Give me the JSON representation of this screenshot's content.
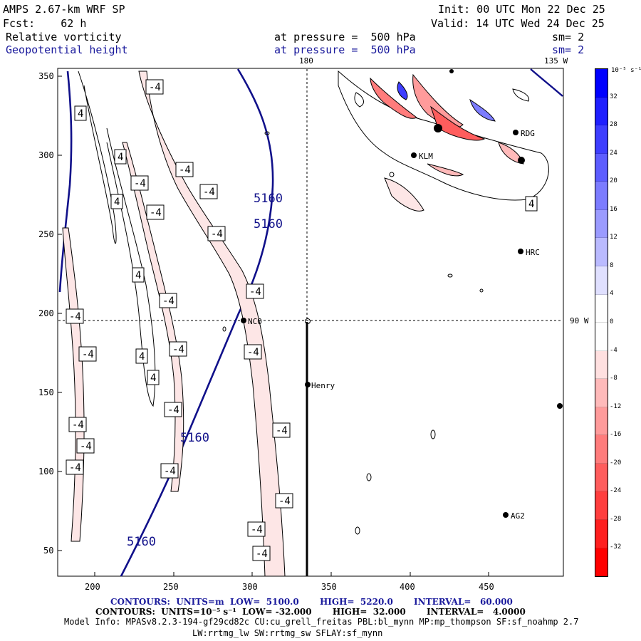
{
  "header": {
    "line1_left": "AMPS 2.67-km WRF SP",
    "line1_right": "Init: 00 UTC Mon 22 Dec 25",
    "line2_left": "Fcst:    62 h",
    "line2_right": "Valid: 14 UTC Wed 24 Dec 25",
    "field1_name": "Relative vorticity",
    "field1_level": "at pressure =  500 hPa",
    "field1_smooth": "sm= 2",
    "field2_name": "Geopotential height",
    "field2_level": "at pressure =  500 hPa",
    "field2_smooth": "sm= 2"
  },
  "map": {
    "meridian_label_top": "180",
    "meridian_label_right_top": "135 W",
    "meridian_label_right": "90 W",
    "x_ticks": [
      "200",
      "250",
      "300",
      "350",
      "400",
      "450"
    ],
    "y_ticks": [
      "350",
      "300",
      "250",
      "200",
      "150",
      "100",
      "50"
    ],
    "stations": [
      {
        "id": "station-noc",
        "label": "NCO"
      },
      {
        "id": "station-henry",
        "label": "Henry"
      },
      {
        "id": "station-hrc",
        "label": "HRC"
      },
      {
        "id": "station-rdg",
        "label": "RDG"
      },
      {
        "id": "station-klm",
        "label": "KLM"
      },
      {
        "id": "station-ag2",
        "label": "AG2"
      }
    ],
    "height_labels": [
      "5160",
      "5160",
      "5160",
      "5160"
    ],
    "vort_labels": [
      "-4",
      "4"
    ]
  },
  "colorbar": {
    "unit_label": "10⁻⁵ s⁻¹",
    "ticks": [
      "32",
      "28",
      "24",
      "20",
      "16",
      "12",
      "8",
      "4",
      "0",
      "-4",
      "-8",
      "-12",
      "-16",
      "-20",
      "-24",
      "-28",
      "-32"
    ],
    "colors": [
      "#0000ff",
      "#1f1fff",
      "#3e3eff",
      "#5d5dff",
      "#7c7cff",
      "#9b9bff",
      "#babaff",
      "#e0e0ff",
      "#ffffff",
      "#ffffff",
      "#ffe0e0",
      "#ffbaba",
      "#ff9b9b",
      "#ff7c7c",
      "#ff5d5d",
      "#ff3e3e",
      "#ff1f1f",
      "#ff0000"
    ]
  },
  "footer": {
    "contours1": "CONTOURS:  UNITS=m  LOW=  5100.0       HIGH=  5220.0       INTERVAL=   60.000",
    "contours2": "CONTOURS:  UNITS=10⁻⁵ s⁻¹  LOW= -32.000       HIGH=  32.000       INTERVAL=   4.0000",
    "model_info": "Model Info: MPASv8.2.3-194-gf29cd82c CU:cu_grell_freitas PBL:bl_mynn MP:mp_thompson SF:sf_noahmp 2.7",
    "model_info2": "LW:rrtmg_lw SW:rrtmg_sw SFLAY:sf_mynn"
  }
}
